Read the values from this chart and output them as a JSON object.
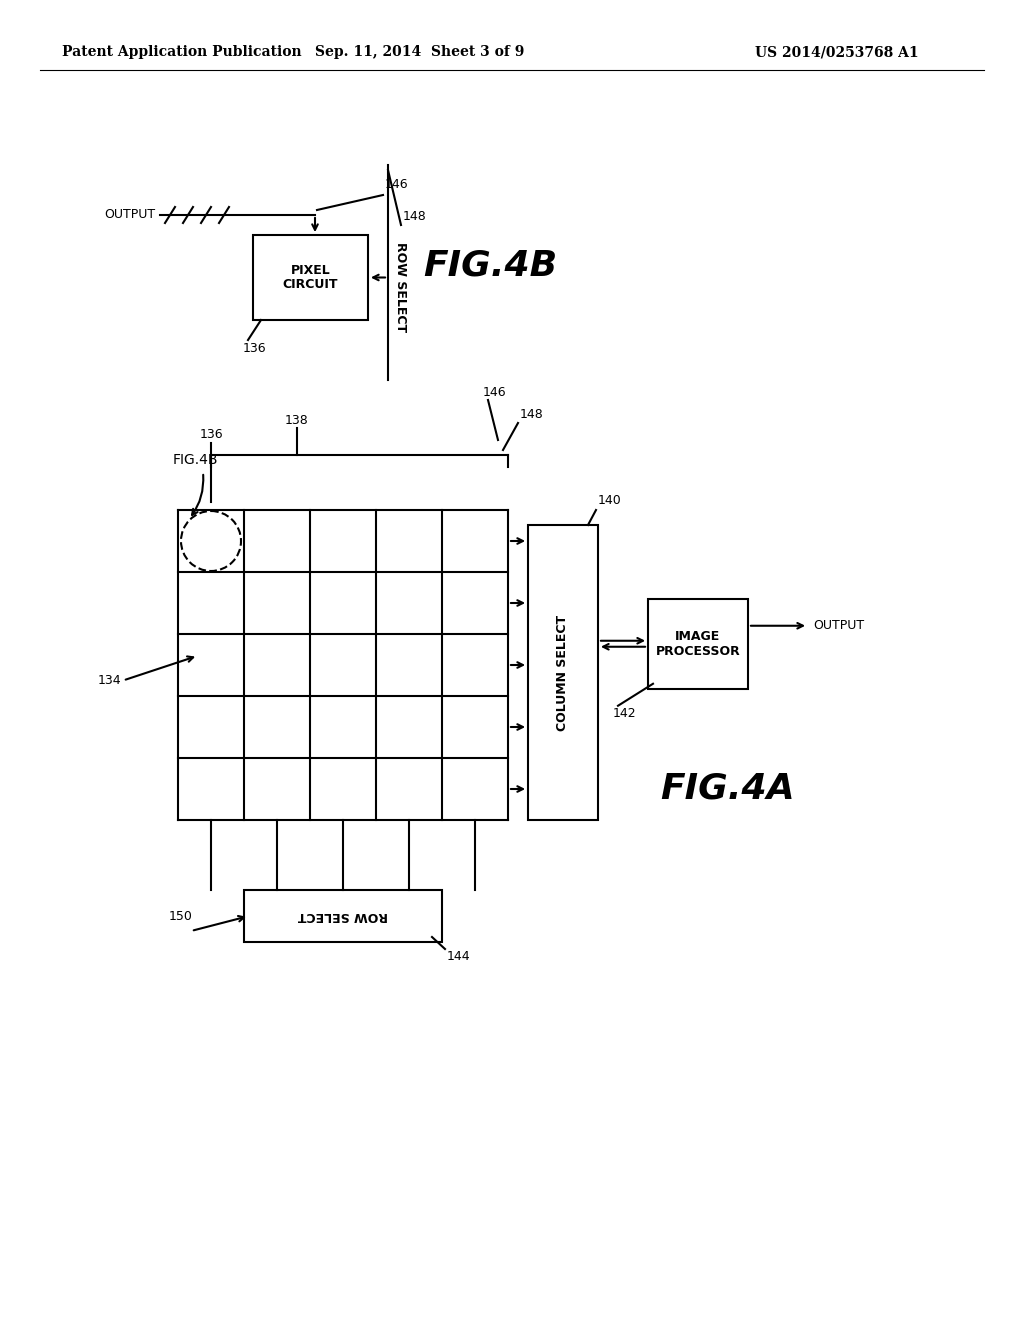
{
  "bg_color": "#ffffff",
  "line_color": "#000000",
  "header_left": "Patent Application Publication",
  "header_center": "Sep. 11, 2014  Sheet 3 of 9",
  "header_right": "US 2014/0253768 A1",
  "fig4b_label": "FIG.4B",
  "fig4a_label": "FIG.4A",
  "ref_134": "134",
  "ref_136": "136",
  "ref_138": "138",
  "ref_140": "140",
  "ref_142": "142",
  "ref_144": "144",
  "ref_146": "146",
  "ref_148": "148",
  "ref_150": "150",
  "output_text": "OUTPUT",
  "column_select_text": "COLUMN SELECT",
  "image_processor_text": "IMAGE\nPROCESSOR",
  "row_select_text": "ROW SELECT",
  "pixel_circuit_text": "PIXEL\nCIRCUIT"
}
